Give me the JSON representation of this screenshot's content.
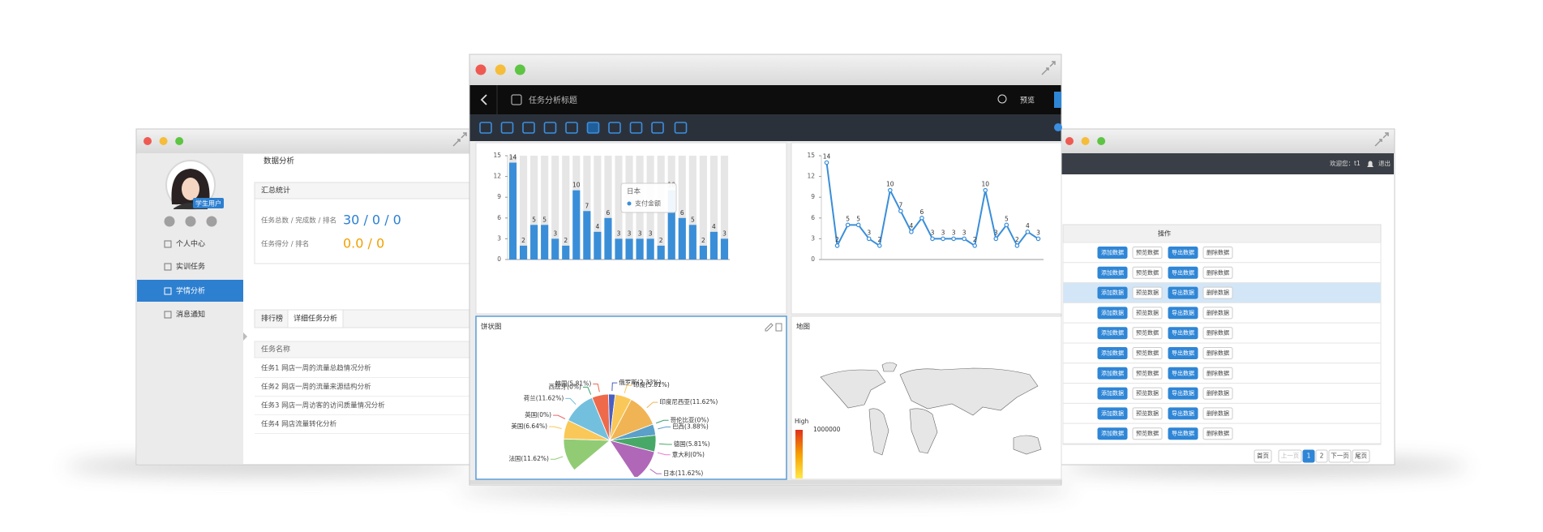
{
  "left_window": {
    "avatar_badge": "学生用户",
    "menu": [
      "个人中心",
      "实训任务",
      "学情分析",
      "消息通知"
    ],
    "breadcrumb": "数据分析",
    "summary": {
      "title": "汇总统计",
      "rows": [
        {
          "label": "任务总数 / 完成数 / 排名",
          "value": "30 / 0 / 0"
        },
        {
          "label": "任务得分 / 排名",
          "value": "0.0 / 0"
        }
      ]
    },
    "tabs": [
      "排行榜",
      "详细任务分析"
    ],
    "task_table": {
      "header": "任务名称",
      "rows": [
        "任务1 网店一周的流量总趋情况分析",
        "任务2 网店一周的流量来源结构分析",
        "任务3 网店一周访客的访问质量情况分析",
        "任务4 网店流量转化分析"
      ]
    }
  },
  "center_window": {
    "title": "任务分析标题",
    "preview": "预览",
    "tooltip": {
      "title": "日本",
      "series": "支付金额"
    },
    "map": {
      "title": "地图",
      "legend_high": "High",
      "legend_value": "1000000"
    }
  },
  "chart_data": [
    {
      "type": "bar",
      "categories": [
        null,
        null,
        null,
        null,
        null,
        null,
        null,
        null,
        null,
        null,
        null,
        null,
        null,
        null,
        null,
        null,
        null,
        null,
        null,
        null,
        null
      ],
      "values": [
        14,
        2,
        5,
        5,
        3,
        2,
        10,
        7,
        4,
        6,
        3,
        3,
        3,
        3,
        2,
        10,
        6,
        5,
        2,
        4,
        3
      ],
      "color": "#3a8ed8",
      "ylim": [
        0,
        15
      ],
      "yticks": [
        0,
        3,
        6,
        9,
        12,
        15
      ],
      "grid": false
    },
    {
      "type": "line",
      "categories": [
        null,
        null,
        null,
        null,
        null,
        null,
        null,
        null,
        null,
        null,
        null,
        null,
        null,
        null,
        null,
        null,
        null,
        null,
        null,
        null,
        null
      ],
      "values": [
        14,
        2,
        5,
        5,
        3,
        2,
        10,
        7,
        4,
        6,
        3,
        3,
        3,
        3,
        2,
        10,
        3,
        5,
        2,
        4,
        3
      ],
      "color": "#3a8ed8",
      "ylim": [
        0,
        15
      ],
      "yticks": [
        0,
        3,
        6,
        9,
        12,
        15
      ],
      "grid": false
    },
    {
      "type": "pie",
      "title": "饼状图",
      "categories": [
        "法国",
        "美国",
        "英国",
        "荷兰",
        "西班牙",
        "韩国",
        "俄罗斯",
        "印度",
        "印度尼西亚",
        "哥伦比亚",
        "巴西",
        "德国",
        "意大利",
        "日本"
      ],
      "values": [
        11.62,
        6.64,
        0,
        11.62,
        0,
        5.81,
        2.33,
        5.81,
        11.62,
        0,
        3.88,
        5.81,
        0,
        11.62
      ],
      "value_labels": [
        "法国(11.62%)",
        "美国(6.64%)",
        "英国(0%)",
        "荷兰(11.62%)",
        "西班牙(0%)",
        "韩国(5.81%)",
        "俄罗斯(2.33%)",
        "印度(5.81%)",
        "印度尼西亚(11.62%)",
        "哥伦比亚(0%)",
        "巴西(3.88%)",
        "德国(5.81%)",
        "意大利(0%)",
        "日本(11.62%)"
      ],
      "colors": [
        "#91cc75",
        "#fac858",
        "#ee6666",
        "#73c0de",
        "#3ba272",
        "#ee6a4a",
        "#4a5fc1",
        "#fac858",
        "#f0b454",
        "#3ba272",
        "#5aa0c8",
        "#48a868",
        "#ea7ccc",
        "#b067b8"
      ]
    }
  ],
  "right_window": {
    "greeting": "欢迎您：t1",
    "logout": "退出",
    "table_header": "操作",
    "rows": [
      [
        "添加数据",
        "预览数据",
        "导出数据",
        "删除数据"
      ],
      [
        "添加数据",
        "预览数据",
        "导出数据",
        "删除数据"
      ],
      [
        "添加数据",
        "预览数据",
        "导出数据",
        "删除数据"
      ],
      [
        "添加数据",
        "预览数据",
        "导出数据",
        "删除数据"
      ],
      [
        "添加数据",
        "预览数据",
        "导出数据",
        "删除数据"
      ],
      [
        "添加数据",
        "预览数据",
        "导出数据",
        "删除数据"
      ],
      [
        "添加数据",
        "预览数据",
        "导出数据",
        "删除数据"
      ],
      [
        "添加数据",
        "预览数据",
        "导出数据",
        "删除数据"
      ],
      [
        "添加数据",
        "预览数据",
        "导出数据",
        "删除数据"
      ],
      [
        "添加数据",
        "预览数据",
        "导出数据",
        "删除数据"
      ]
    ],
    "pagination": [
      "首页",
      "上一页",
      "1",
      "2",
      "下一页",
      "尾页"
    ]
  }
}
